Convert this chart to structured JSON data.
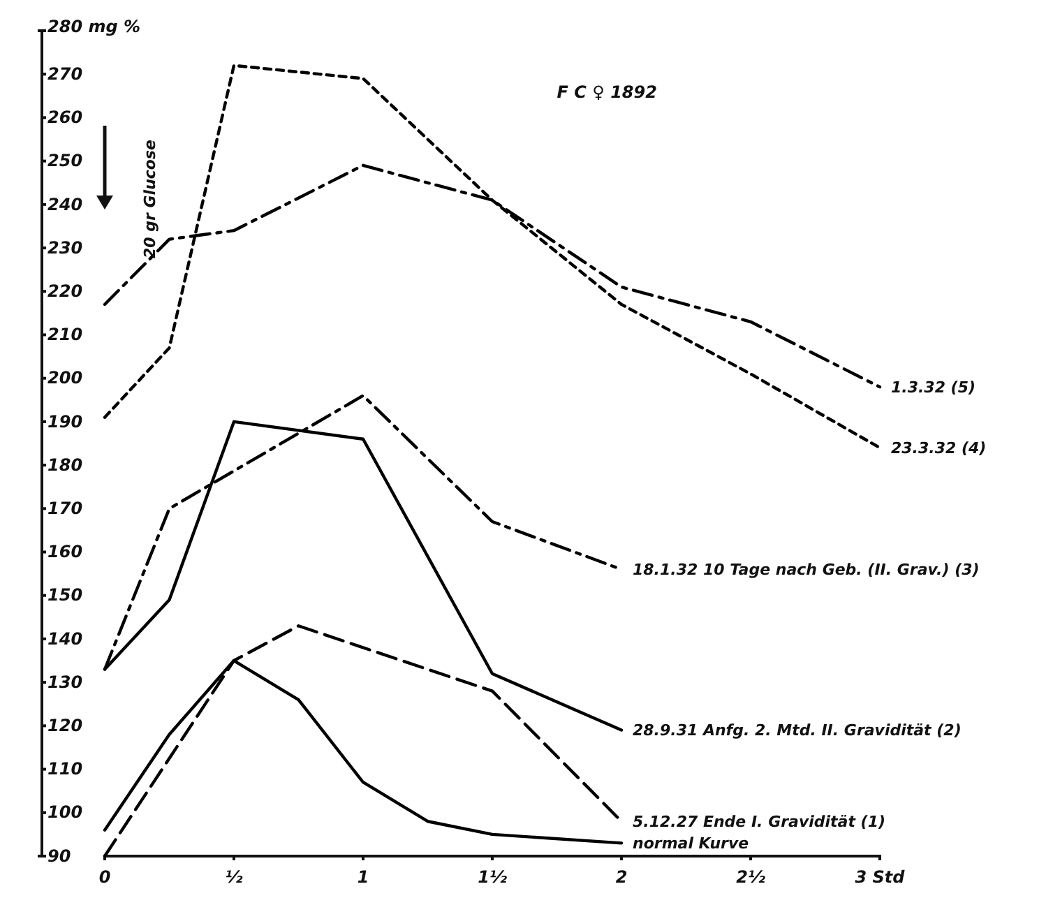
{
  "chart_data": {
    "type": "line",
    "title": "F C ♀ 1892",
    "annotations": [
      "20 gr Glucose"
    ],
    "xlim": [
      0,
      3
    ],
    "xticks": [
      0,
      {
        "value": 0.5,
        "label": "½"
      },
      1,
      {
        "value": 1.5,
        "label": "1½"
      },
      2,
      {
        "value": 2.5,
        "label": "2½"
      },
      {
        "value": 3,
        "label": "3 Std"
      }
    ],
    "ylim": [
      90,
      280
    ],
    "yticks": [
      90,
      100,
      110,
      120,
      130,
      140,
      150,
      160,
      170,
      180,
      190,
      200,
      210,
      220,
      230,
      240,
      250,
      260,
      270,
      {
        "value": 280,
        "label": "280 mg %"
      }
    ],
    "grid": false,
    "marker": "none",
    "series": [
      {
        "name": "1.3.32 (5)",
        "color": "#000000",
        "line_style": "dashdot",
        "x": [
          0,
          0.25,
          0.5,
          1,
          1.5,
          2,
          2.5,
          3
        ],
        "values": [
          217,
          232,
          234,
          249,
          241,
          221,
          213,
          198
        ]
      },
      {
        "name": "23.3.32 (4)",
        "color": "#000000",
        "line_style": "dotted",
        "x": [
          0,
          0.25,
          0.5,
          1,
          1.5,
          2,
          2.5,
          3
        ],
        "values": [
          191,
          207,
          272,
          269,
          241,
          217,
          201,
          184
        ]
      },
      {
        "name": "18.1.32   10 Tage nach Geb. (II. Grav.) (3)",
        "color": "#000000",
        "line_style": "dashdot",
        "x": [
          0,
          0.25,
          1,
          1.5,
          2
        ],
        "values": [
          133,
          170,
          196,
          167,
          156
        ]
      },
      {
        "name": "28.9.31 Anfg. 2. Mtd. II. Gravidität (2)",
        "color": "#000000",
        "line_style": "solid",
        "x": [
          0,
          0.25,
          0.5,
          1,
          1.5,
          2
        ],
        "values": [
          133,
          149,
          190,
          186,
          132,
          119
        ]
      },
      {
        "name": "5.12.27 Ende I. Gravidität      (1)",
        "color": "#000000",
        "line_style": "dashed",
        "x": [
          0,
          0.5,
          0.75,
          1.5,
          2
        ],
        "values": [
          90,
          135,
          143,
          128,
          98
        ]
      },
      {
        "name": "normal Kurve",
        "color": "#000000",
        "line_style": "solid",
        "x": [
          0,
          0.25,
          0.5,
          0.75,
          1,
          1.25,
          1.5,
          2
        ],
        "values": [
          96,
          118,
          135,
          126,
          107,
          98,
          95,
          93
        ]
      }
    ]
  }
}
